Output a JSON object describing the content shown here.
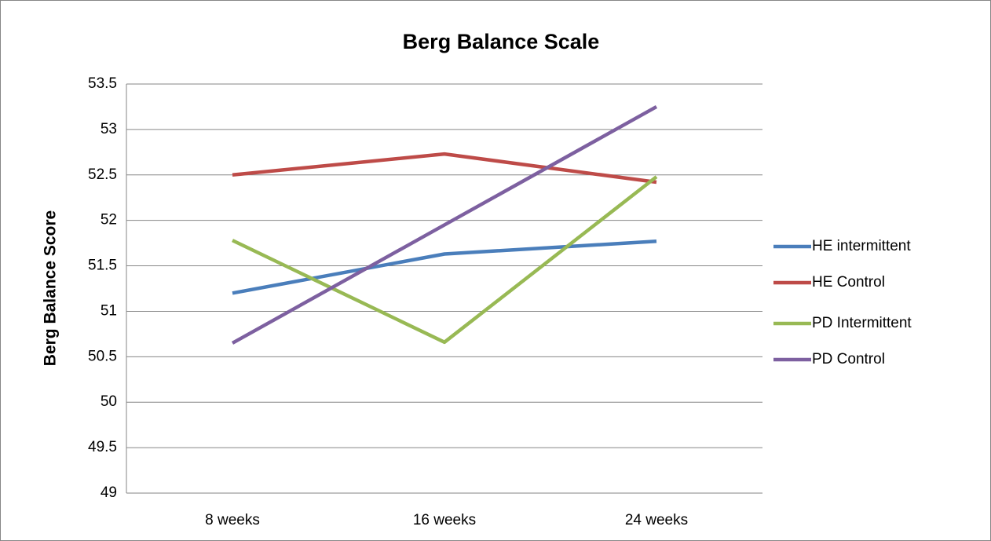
{
  "chart_data": {
    "type": "line",
    "title": "Berg Balance Scale",
    "y_label": "Berg Balance Score",
    "categories": [
      "8 weeks",
      "16 weeks",
      "24 weeks"
    ],
    "series": [
      {
        "name": "HE intermittent",
        "color": "#4a7ebb",
        "values": [
          51.2,
          51.63,
          51.77
        ]
      },
      {
        "name": "HE Control",
        "color": "#be4b48",
        "values": [
          52.5,
          52.73,
          52.42
        ]
      },
      {
        "name": "PD Intermittent",
        "color": "#98b954",
        "values": [
          51.78,
          50.66,
          52.48
        ]
      },
      {
        "name": "PD Control",
        "color": "#7d60a0",
        "values": [
          50.65,
          51.95,
          53.25
        ]
      }
    ],
    "ylim": [
      49,
      53.5
    ],
    "yticks": [
      49,
      49.5,
      50,
      50.5,
      51,
      51.5,
      52,
      52.5,
      53,
      53.5
    ],
    "grid": true,
    "legend": "right"
  }
}
